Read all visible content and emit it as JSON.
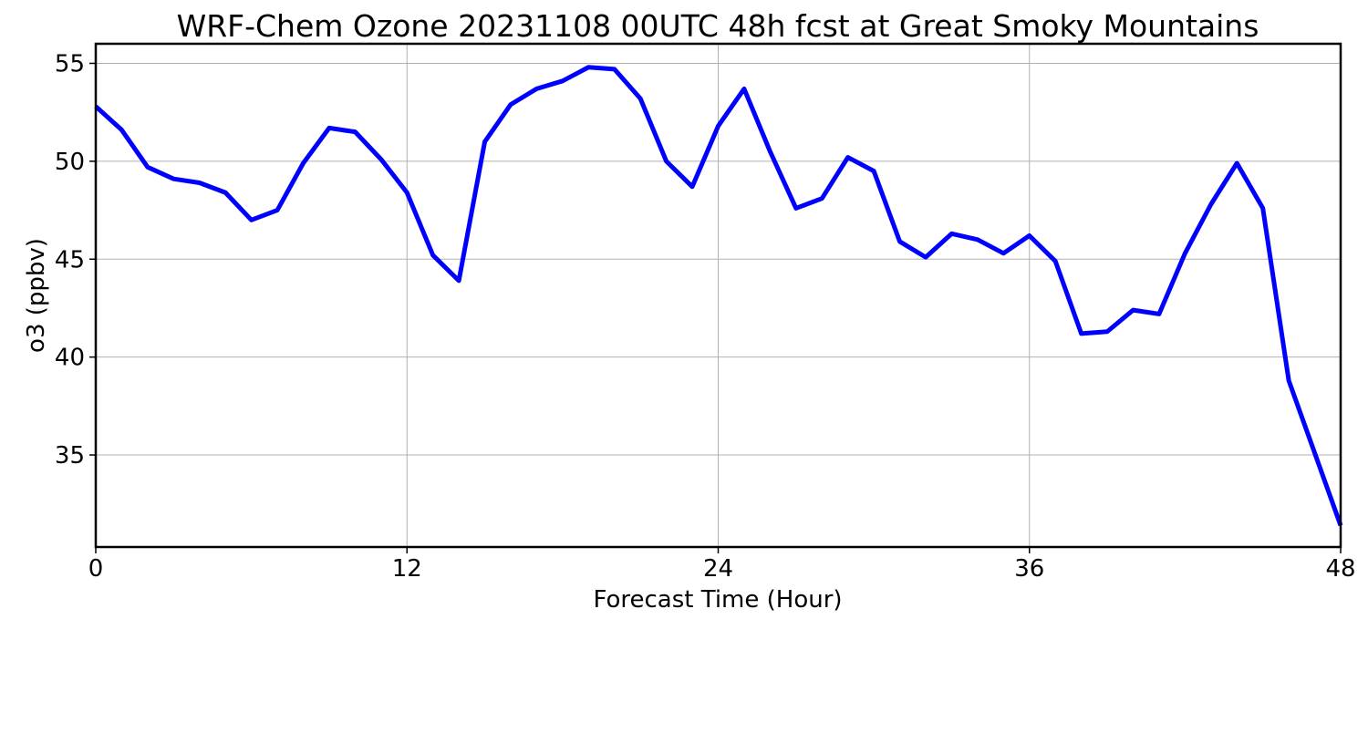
{
  "chart_data": {
    "type": "line",
    "title": "WRF-Chem Ozone  20231108 00UTC 48h fcst at Great Smoky Mountains",
    "xlabel": "Forecast Time (Hour)",
    "ylabel": "o3  (ppbv)",
    "xlim": [
      0,
      48
    ],
    "ylim": [
      30.3,
      56
    ],
    "xticks": [
      0,
      12,
      24,
      36,
      48
    ],
    "yticks": [
      35,
      40,
      45,
      50,
      55
    ],
    "grid": true,
    "series": [
      {
        "color": "#0000ff",
        "x": [
          0,
          1,
          2,
          3,
          4,
          5,
          6,
          7,
          8,
          9,
          10,
          11,
          12,
          13,
          14,
          15,
          16,
          17,
          18,
          19,
          20,
          21,
          22,
          23,
          24,
          25,
          26,
          27,
          28,
          29,
          30,
          31,
          32,
          33,
          34,
          35,
          36,
          37,
          38,
          39,
          40,
          41,
          42,
          43,
          44,
          45,
          46,
          47,
          48
        ],
        "values": [
          52.8,
          51.6,
          49.7,
          49.1,
          48.9,
          48.4,
          47.0,
          47.5,
          49.9,
          51.7,
          51.5,
          50.1,
          48.4,
          45.2,
          43.9,
          51.0,
          52.9,
          53.7,
          54.1,
          54.8,
          54.7,
          53.2,
          50.0,
          48.7,
          51.8,
          53.7,
          50.5,
          47.6,
          48.1,
          50.2,
          49.5,
          45.9,
          45.1,
          46.3,
          46.0,
          45.3,
          46.2,
          44.9,
          41.2,
          41.3,
          42.4,
          42.2,
          45.3,
          47.8,
          49.9,
          47.6,
          38.8,
          35.1,
          31.4
        ]
      }
    ]
  }
}
